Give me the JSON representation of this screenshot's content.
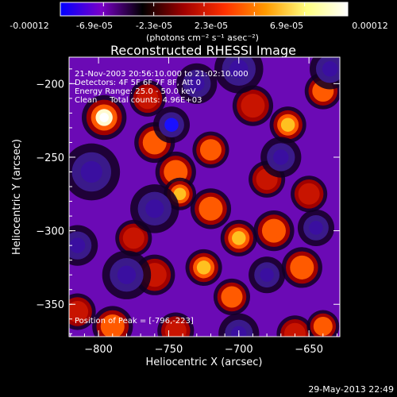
{
  "colorbar": {
    "tick_labels": [
      "-0.00012",
      "-6.9e-05",
      "-2.3e-05",
      "2.3e-05",
      "6.9e-05",
      "0.00012"
    ],
    "unit_label": "(photons cm⁻² s⁻¹ asec⁻²)",
    "range": [
      -0.00012,
      0.00012
    ],
    "colormap": [
      "#0000ff",
      "#7a00c8",
      "#000000",
      "#a00000",
      "#ff3000",
      "#ff9a00",
      "#ffff80",
      "#ffffff"
    ]
  },
  "chart_data": {
    "type": "heatmap",
    "title": "Reconstructed RHESSI Image",
    "xlabel": "Heliocentric X (arcsec)",
    "ylabel": "Heliocentric Y (arcsec)",
    "xlim": [
      -821,
      -628
    ],
    "ylim": [
      -372,
      -182
    ],
    "x_ticks": [
      -800,
      -750,
      -700,
      -650
    ],
    "y_ticks": [
      -200,
      -250,
      -300,
      -350
    ],
    "x_tick_labels": [
      "−800",
      "−750",
      "−700",
      "−650"
    ],
    "y_tick_labels": [
      "−200",
      "−250",
      "−300",
      "−350"
    ],
    "annotations": [
      "21-Nov-2003 20:56:10.000 to 21:02:10.000",
      "Detectors: 4F 5F 6F 7F 8F, Att 0",
      "Energy Range: 25.0 - 50.0 keV",
      "Clean     Total counts: 4.96E+03"
    ],
    "peak_label": "Position of Peak = [-796,-223]",
    "peak": [
      -796,
      -223
    ],
    "blobs": [
      {
        "x": -796,
        "y": -223,
        "v": 1.0,
        "r": 11
      },
      {
        "x": -790,
        "y": -365,
        "v": 0.65,
        "r": 10
      },
      {
        "x": -815,
        "y": -355,
        "v": 0.45,
        "r": 9
      },
      {
        "x": -760,
        "y": -240,
        "v": 0.7,
        "r": 10
      },
      {
        "x": -765,
        "y": -210,
        "v": 0.5,
        "r": 9
      },
      {
        "x": -745,
        "y": -260,
        "v": 0.6,
        "r": 10
      },
      {
        "x": -742,
        "y": -275,
        "v": 0.8,
        "r": 8
      },
      {
        "x": -720,
        "y": -245,
        "v": 0.55,
        "r": 9
      },
      {
        "x": -720,
        "y": -285,
        "v": 0.65,
        "r": 10
      },
      {
        "x": -725,
        "y": -325,
        "v": 0.75,
        "r": 9
      },
      {
        "x": -700,
        "y": -305,
        "v": 0.85,
        "r": 9
      },
      {
        "x": -705,
        "y": -345,
        "v": 0.55,
        "r": 9
      },
      {
        "x": -675,
        "y": -300,
        "v": 0.6,
        "r": 10
      },
      {
        "x": -655,
        "y": -325,
        "v": 0.65,
        "r": 10
      },
      {
        "x": -650,
        "y": -275,
        "v": 0.45,
        "r": 9
      },
      {
        "x": -690,
        "y": -215,
        "v": 0.5,
        "r": 10
      },
      {
        "x": -665,
        "y": -228,
        "v": 0.8,
        "r": 9
      },
      {
        "x": -640,
        "y": -205,
        "v": 0.7,
        "r": 9
      },
      {
        "x": -660,
        "y": -370,
        "v": 0.5,
        "r": 9
      },
      {
        "x": -640,
        "y": -365,
        "v": 0.55,
        "r": 8
      },
      {
        "x": -760,
        "y": -330,
        "v": 0.45,
        "r": 10
      },
      {
        "x": -775,
        "y": -305,
        "v": 0.4,
        "r": 9
      },
      {
        "x": -680,
        "y": -265,
        "v": 0.35,
        "r": 9
      },
      {
        "x": -745,
        "y": -368,
        "v": 0.4,
        "r": 9
      },
      {
        "x": -805,
        "y": -260,
        "v": -0.35,
        "r": 14
      },
      {
        "x": -760,
        "y": -285,
        "v": -0.4,
        "r": 12
      },
      {
        "x": -748,
        "y": -228,
        "v": -0.55,
        "r": 9
      },
      {
        "x": -700,
        "y": -190,
        "v": -0.35,
        "r": 12
      },
      {
        "x": -670,
        "y": -250,
        "v": -0.4,
        "r": 10
      },
      {
        "x": -645,
        "y": -298,
        "v": -0.45,
        "r": 9
      },
      {
        "x": -635,
        "y": -190,
        "v": -0.35,
        "r": 10
      },
      {
        "x": -780,
        "y": -330,
        "v": -0.3,
        "r": 12
      },
      {
        "x": -700,
        "y": -370,
        "v": -0.35,
        "r": 10
      },
      {
        "x": -730,
        "y": -200,
        "v": -0.3,
        "r": 10
      },
      {
        "x": -815,
        "y": -310,
        "v": -0.3,
        "r": 10
      },
      {
        "x": -680,
        "y": -330,
        "v": -0.3,
        "r": 9
      }
    ]
  },
  "footer": {
    "timestamp": "29-May-2013 22:49"
  }
}
